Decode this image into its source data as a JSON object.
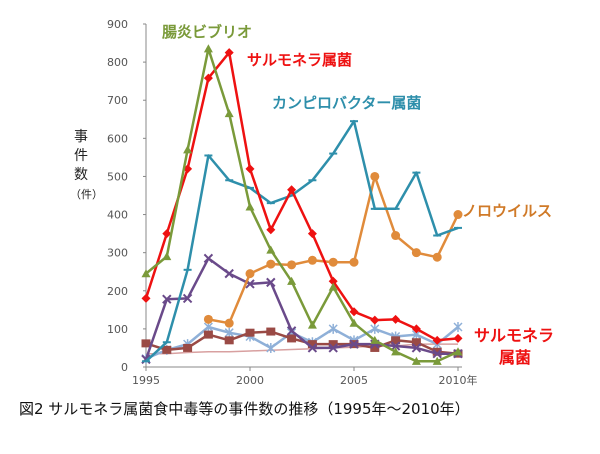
{
  "chart_data": {
    "type": "line",
    "caption": "図2 サルモネラ属菌食中毒等の事件数の推移（1995年～2010年）",
    "ylabel": "事件数",
    "yunit": "（件）",
    "ylim": [
      0,
      900
    ],
    "yticks": [
      "0",
      "100",
      "200",
      "300",
      "400",
      "500",
      "600",
      "700",
      "800",
      "900"
    ],
    "xlim": [
      1995,
      2010
    ],
    "xticks": [
      {
        "value": 1995,
        "label": "1995"
      },
      {
        "value": 2000,
        "label": "2000"
      },
      {
        "value": 2005,
        "label": "2005"
      },
      {
        "value": 2010,
        "label": "2010年"
      }
    ],
    "grid": false,
    "series": [
      {
        "key": "ent",
        "color": "#7a9a3a",
        "marker": "triangle",
        "x": [
          1995,
          1996,
          1997,
          1998,
          1999,
          2000,
          2001,
          2002,
          2003,
          2004,
          2005,
          2006,
          2007,
          2008,
          2009,
          2010
        ],
        "values": [
          245,
          290,
          570,
          835,
          665,
          420,
          307,
          225,
          110,
          210,
          115,
          70,
          40,
          15,
          15,
          40
        ]
      },
      {
        "key": "sal",
        "color": "#ee1111",
        "marker": "diamond",
        "x": [
          1995,
          1996,
          1997,
          1998,
          1999,
          2000,
          2001,
          2002,
          2003,
          2004,
          2005,
          2006,
          2007,
          2008,
          2009,
          2010
        ],
        "values": [
          180,
          350,
          520,
          758,
          825,
          520,
          360,
          465,
          350,
          225,
          145,
          123,
          125,
          100,
          70,
          75
        ]
      },
      {
        "key": "camp",
        "color": "#2e8fab",
        "marker": "dash",
        "x": [
          1995,
          1996,
          1997,
          1998,
          1999,
          2000,
          2001,
          2002,
          2003,
          2004,
          2005,
          2006,
          2007,
          2008,
          2009,
          2010
        ],
        "values": [
          15,
          65,
          255,
          555,
          490,
          470,
          430,
          450,
          490,
          560,
          645,
          415,
          415,
          510,
          345,
          365
        ]
      },
      {
        "key": "noro",
        "color": "#e08b3b",
        "marker": "circle",
        "x": [
          1998,
          1999,
          2000,
          2001,
          2002,
          2003,
          2004,
          2005,
          2006,
          2007,
          2008,
          2009,
          2010
        ],
        "values": [
          125,
          115,
          245,
          270,
          268,
          280,
          275,
          275,
          500,
          345,
          300,
          288,
          400
        ]
      },
      {
        "key": "s5",
        "color": "#6a4a8a",
        "marker": "cross",
        "x": [
          1995,
          1996,
          1997,
          1998,
          1999,
          2000,
          2001,
          2002,
          2003,
          2004,
          2005,
          2006,
          2007,
          2008,
          2009,
          2010
        ],
        "values": [
          20,
          178,
          180,
          285,
          245,
          218,
          222,
          95,
          50,
          50,
          60,
          60,
          55,
          50,
          35,
          35
        ]
      },
      {
        "key": "s6",
        "color": "#9a4a45",
        "marker": "square",
        "x": [
          1995,
          1996,
          1997,
          1998,
          1999,
          2000,
          2001,
          2002,
          2003,
          2004,
          2005,
          2006,
          2007,
          2008,
          2009,
          2010
        ],
        "values": [
          62,
          45,
          50,
          85,
          70,
          90,
          93,
          75,
          60,
          60,
          60,
          50,
          70,
          65,
          40,
          35
        ]
      },
      {
        "key": "s7",
        "color": "#8fb0d8",
        "marker": "star",
        "x": [
          1995,
          1996,
          1997,
          1998,
          1999,
          2000,
          2001,
          2002,
          2003,
          2004,
          2005,
          2006,
          2007,
          2008,
          2009,
          2010
        ],
        "values": [
          22,
          45,
          60,
          105,
          90,
          80,
          50,
          90,
          65,
          100,
          70,
          100,
          80,
          85,
          60,
          105
        ]
      },
      {
        "key": "s8",
        "color": "#d8a0a0",
        "marker": "none",
        "x": [
          1995,
          1996,
          1997,
          1998,
          1999,
          2000,
          2001,
          2002,
          2003,
          2004,
          2005,
          2006,
          2007,
          2008,
          2009,
          2010
        ],
        "values": [
          35,
          35,
          38,
          40,
          40,
          42,
          44,
          46,
          48,
          50,
          52,
          55,
          55,
          60,
          60,
          60
        ]
      }
    ],
    "labels": [
      {
        "key": "ent",
        "text": "腸炎ビブリオ",
        "color": "#7a9a3a"
      },
      {
        "key": "sal_top",
        "text": "サルモネラ属菌",
        "color": "#ee1111"
      },
      {
        "key": "camp",
        "text": "カンピロバクター属菌",
        "color": "#2e8fab"
      },
      {
        "key": "noro",
        "text": "ノロウイルス",
        "color": "#d07a28"
      },
      {
        "key": "sal_r1",
        "text": "サルモネラ",
        "color": "#ee1111"
      },
      {
        "key": "sal_r2",
        "text": "属菌",
        "color": "#ee1111"
      }
    ]
  }
}
